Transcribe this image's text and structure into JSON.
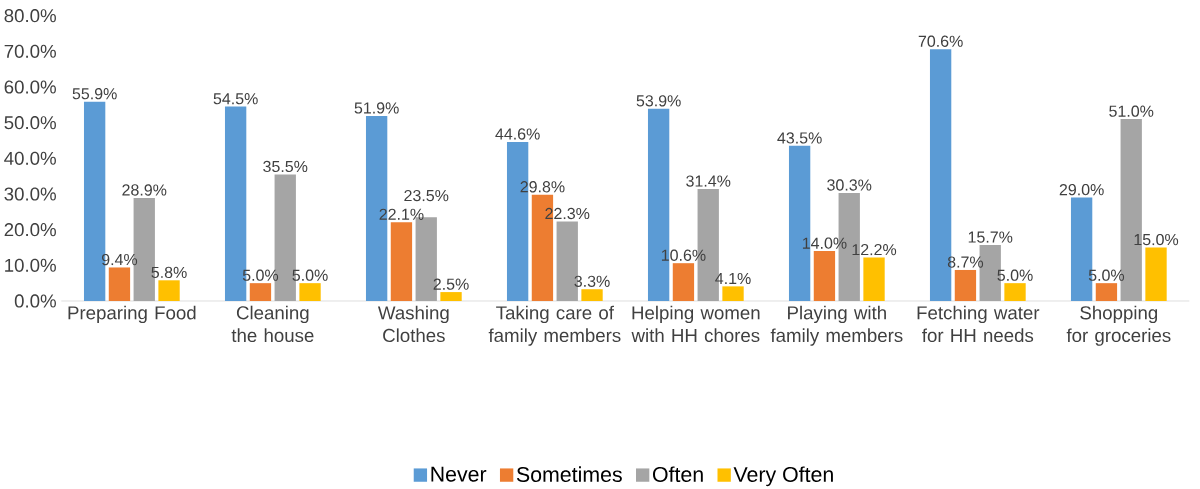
{
  "chart_data": {
    "type": "bar",
    "categories": [
      "Preparing Food",
      "Cleaning the house",
      "Washing Clothes",
      "Taking care of family members",
      "Helping women with HH chores",
      "Playing with family members",
      "Fetching water for HH needs",
      "Shopping for groceries"
    ],
    "series": [
      {
        "name": "Never",
        "color": "#5b9bd5",
        "values": [
          55.9,
          54.5,
          51.9,
          44.6,
          53.9,
          43.5,
          70.6,
          29.0
        ],
        "value_labels": [
          "55.9%",
          "54.5%",
          "51.9%",
          "44.6%",
          "53.9%",
          "43.5%",
          "70.6%",
          "29.0%"
        ]
      },
      {
        "name": "Sometimes",
        "color": "#ed7d31",
        "values": [
          9.4,
          5.0,
          22.1,
          29.8,
          10.6,
          14.0,
          8.7,
          5.0
        ],
        "value_labels": [
          "9.4%",
          "5.0%",
          "22.1%",
          "29.8%",
          "10.6%",
          "14.0%",
          "8.7%",
          "5.0%"
        ]
      },
      {
        "name": "Often",
        "color": "#a5a5a5",
        "values": [
          28.9,
          35.5,
          23.5,
          22.3,
          31.4,
          30.3,
          15.7,
          51.0
        ],
        "value_labels": [
          "28.9%",
          "35.5%",
          "23.5%",
          "22.3%",
          "31.4%",
          "30.3%",
          "15.7%",
          "51.0%"
        ]
      },
      {
        "name": "Very Often",
        "color": "#ffc000",
        "values": [
          5.8,
          5.0,
          2.5,
          3.3,
          4.1,
          12.2,
          5.0,
          15.0
        ],
        "value_labels": [
          "5.8%",
          "5.0%",
          "2.5%",
          "3.3%",
          "4.1%",
          "12.2%",
          "5.0%",
          "15.0%"
        ]
      }
    ],
    "ylim": [
      0,
      80
    ],
    "yticks": [
      {
        "value": 0,
        "label": "0.0%"
      },
      {
        "value": 10,
        "label": "10.0%"
      },
      {
        "value": 20,
        "label": "20.0%"
      },
      {
        "value": 30,
        "label": "30.0%"
      },
      {
        "value": 40,
        "label": "40.0%"
      },
      {
        "value": 50,
        "label": "50.0%"
      },
      {
        "value": 60,
        "label": "60.0%"
      },
      {
        "value": 70,
        "label": "70.0%"
      },
      {
        "value": 80,
        "label": "80.0%"
      }
    ],
    "grid": false,
    "legend": "bottom"
  }
}
